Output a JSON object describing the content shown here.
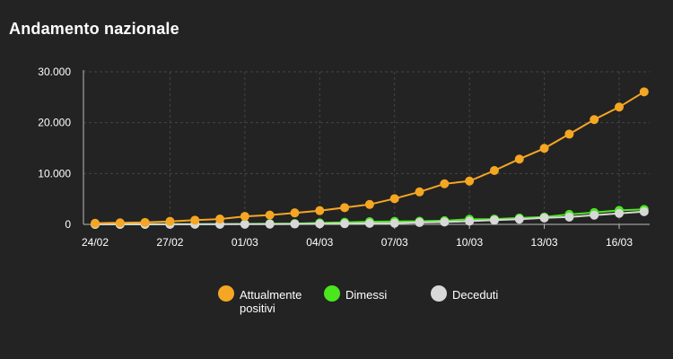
{
  "title": "Andamento nazionale",
  "chart_data": {
    "type": "line",
    "x": [
      "24/02",
      "25/02",
      "26/02",
      "27/02",
      "28/02",
      "29/02",
      "01/03",
      "02/03",
      "03/03",
      "04/03",
      "05/03",
      "06/03",
      "07/03",
      "08/03",
      "09/03",
      "10/03",
      "11/03",
      "12/03",
      "13/03",
      "14/03",
      "15/03",
      "16/03",
      "17/03"
    ],
    "x_tick_labels": [
      "24/02",
      "27/02",
      "01/03",
      "04/03",
      "07/03",
      "10/03",
      "13/03",
      "16/03"
    ],
    "y_tick_labels": [
      "0",
      "10.000",
      "20.000",
      "30.000"
    ],
    "ylim": [
      0,
      30000
    ],
    "series": [
      {
        "name": "Attualmente positivi",
        "color": "#f5a623",
        "values": [
          221,
          311,
          385,
          588,
          821,
          1049,
          1577,
          1835,
          2263,
          2706,
          3296,
          3916,
          5061,
          6387,
          7985,
          8514,
          10590,
          12839,
          14955,
          17750,
          20603,
          23073,
          26062
        ]
      },
      {
        "name": "Dimessi",
        "color": "#4ae61e",
        "values": [
          1,
          1,
          3,
          45,
          46,
          50,
          83,
          149,
          160,
          276,
          414,
          523,
          589,
          622,
          724,
          1004,
          1045,
          1258,
          1439,
          1966,
          2335,
          2749,
          2941
        ]
      },
      {
        "name": "Deceduti",
        "color": "#d8d8d8",
        "values": [
          7,
          10,
          12,
          17,
          21,
          29,
          34,
          52,
          79,
          107,
          148,
          197,
          233,
          366,
          463,
          631,
          827,
          1016,
          1266,
          1441,
          1809,
          2158,
          2503
        ]
      }
    ],
    "grid": true,
    "legend_position": "bottom"
  },
  "legend": {
    "items": [
      {
        "label_line1": "Attualmente",
        "label_line2": "positivi",
        "color": "#f5a623"
      },
      {
        "label_line1": "Dimessi",
        "label_line2": "",
        "color": "#4ae61e"
      },
      {
        "label_line1": "Deceduti",
        "label_line2": "",
        "color": "#d8d8d8"
      }
    ]
  }
}
